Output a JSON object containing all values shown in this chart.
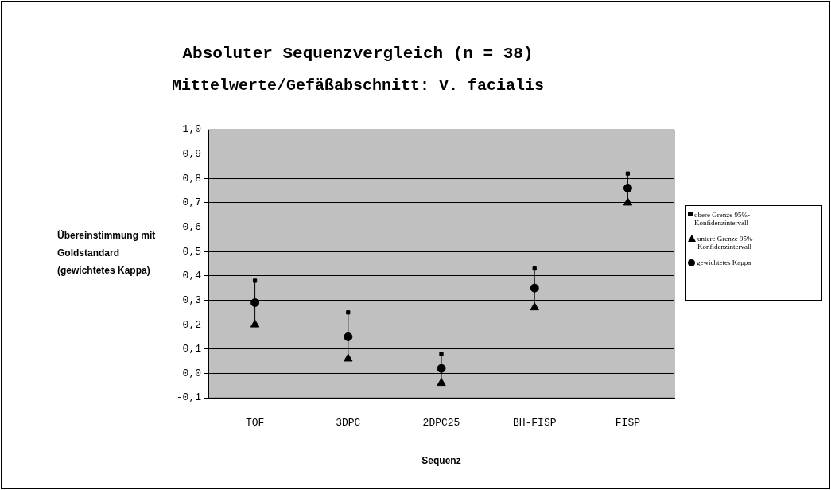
{
  "chart_data": {
    "type": "scatter",
    "title": "Absoluter Sequenzvergleich (n = 38)",
    "subtitle": "Mittelwerte/Gefäßabschnitt: V. facialis",
    "xlabel": "Sequenz",
    "ylabel": "Übereinstimmung mit Goldstandard (gewichtetes Kappa)",
    "categories": [
      "TOF",
      "3DPC",
      "2DPC25",
      "BH-FISP",
      "FISP"
    ],
    "series": [
      {
        "name": "obere Grenze 95%-Konfidenzintervall",
        "color": "#000000",
        "marker": "square",
        "values": [
          0.38,
          0.25,
          0.08,
          0.43,
          0.82
        ]
      },
      {
        "name": "untere Grenze 95%-Konfidenzintervall",
        "color": "#000000",
        "marker": "triangle",
        "values": [
          0.2,
          0.06,
          -0.04,
          0.27,
          0.7
        ]
      },
      {
        "name": "gewichtetes Kappa",
        "color": "#000000",
        "marker": "circle",
        "values": [
          0.29,
          0.15,
          0.02,
          0.35,
          0.76
        ]
      }
    ],
    "ylim": [
      -0.1,
      1.0
    ],
    "yticks": [
      {
        "value": -0.1,
        "label": "-0,1"
      },
      {
        "value": 0,
        "label": "0,0"
      },
      {
        "value": 0.1,
        "label": "0,1"
      },
      {
        "value": 0.2,
        "label": "0,2"
      },
      {
        "value": 0.3,
        "label": "0,3"
      },
      {
        "value": 0.4,
        "label": "0,4"
      },
      {
        "value": 0.5,
        "label": "0,5"
      },
      {
        "value": 0.6,
        "label": "0,6"
      },
      {
        "value": 0.7,
        "label": "0,7"
      },
      {
        "value": 0.8,
        "label": "0,8"
      },
      {
        "value": 0.9,
        "label": "0,9"
      },
      {
        "value": 1.0,
        "label": "1,0"
      }
    ],
    "grid": "y",
    "legend": "right"
  }
}
